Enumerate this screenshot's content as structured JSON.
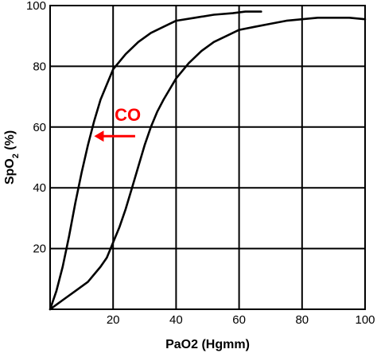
{
  "chart_data": {
    "type": "line",
    "title": "",
    "xlabel": "PaO2 (Hgmm)",
    "ylabel_main": "SpO",
    "ylabel_sub": "2",
    "ylabel_tail": " (%)",
    "xlim": [
      0,
      100
    ],
    "ylim": [
      0,
      100
    ],
    "xticks": [
      20,
      40,
      60,
      80,
      100
    ],
    "yticks": [
      20,
      40,
      60,
      80,
      100
    ],
    "grid": true,
    "series": [
      {
        "color": "#000000",
        "points": [
          [
            0,
            0
          ],
          [
            2,
            6
          ],
          [
            4,
            14
          ],
          [
            6,
            24
          ],
          [
            8,
            35
          ],
          [
            10,
            45
          ],
          [
            12,
            54
          ],
          [
            14,
            62
          ],
          [
            16,
            69
          ],
          [
            18,
            74
          ],
          [
            20,
            79
          ],
          [
            24,
            84
          ],
          [
            28,
            88
          ],
          [
            32,
            91
          ],
          [
            36,
            93
          ],
          [
            40,
            95
          ],
          [
            46,
            96
          ],
          [
            52,
            97
          ],
          [
            58,
            97.5
          ],
          [
            62,
            98
          ],
          [
            67,
            98
          ]
        ]
      },
      {
        "color": "#000000",
        "points": [
          [
            0,
            0
          ],
          [
            4,
            3
          ],
          [
            8,
            6
          ],
          [
            12,
            9
          ],
          [
            16,
            14
          ],
          [
            18,
            17
          ],
          [
            20,
            22
          ],
          [
            22,
            27
          ],
          [
            24,
            33
          ],
          [
            26,
            40
          ],
          [
            28,
            47
          ],
          [
            30,
            54
          ],
          [
            32,
            60
          ],
          [
            34,
            65
          ],
          [
            36,
            69
          ],
          [
            40,
            76
          ],
          [
            44,
            81
          ],
          [
            48,
            85
          ],
          [
            52,
            88
          ],
          [
            56,
            90
          ],
          [
            60,
            92
          ],
          [
            65,
            93
          ],
          [
            70,
            94
          ],
          [
            75,
            95
          ],
          [
            80,
            95.5
          ],
          [
            85,
            96
          ],
          [
            90,
            96
          ],
          [
            95,
            96
          ],
          [
            100,
            95.5
          ]
        ]
      }
    ],
    "annotations": [
      {
        "text": "CO",
        "x": 20.5,
        "y": 62,
        "color": "#ff0000"
      }
    ],
    "arrow": {
      "from": [
        27,
        57
      ],
      "to": [
        14,
        57
      ],
      "color": "#ff0000"
    }
  }
}
